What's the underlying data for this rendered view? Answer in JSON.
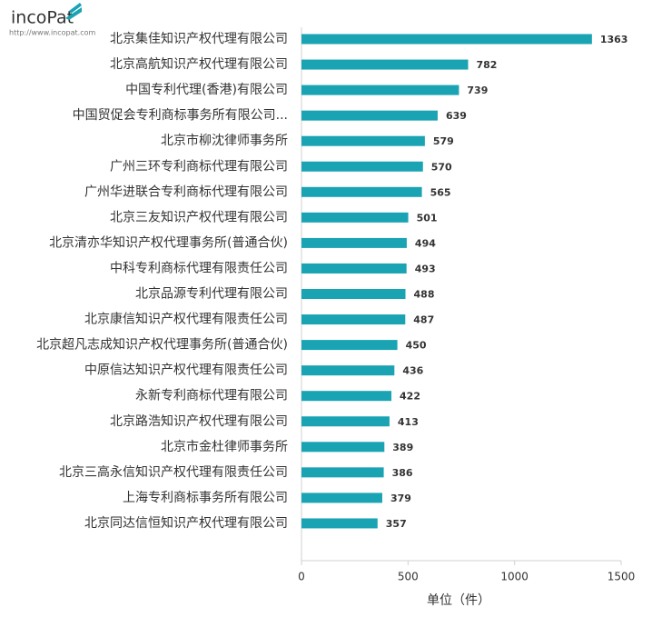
{
  "logo": {
    "text": "incoPat",
    "url": "http://www.incopat.com"
  },
  "chart_data": {
    "type": "hbar",
    "categories": [
      "北京集佳知识产权代理有限公司",
      "北京高航知识产权代理有限公司",
      "中国专利代理(香港)有限公司",
      "中国贸促会专利商标事务所有限公司...",
      "北京市柳沈律师事务所",
      "广州三环专利商标代理有限公司",
      "广州华进联合专利商标代理有限公司",
      "北京三友知识产权代理有限公司",
      "北京清亦华知识产权代理事务所(普通合伙)",
      "中科专利商标代理有限责任公司",
      "北京品源专利代理有限公司",
      "北京康信知识产权代理有限责任公司",
      "北京超凡志成知识产权代理事务所(普通合伙)",
      "中原信达知识产权代理有限责任公司",
      "永新专利商标代理有限公司",
      "北京路浩知识产权代理有限公司",
      "北京市金杜律师事务所",
      "北京三高永信知识产权代理有限责任公司",
      "上海专利商标事务所有限公司",
      "北京同达信恒知识产权代理有限公司"
    ],
    "values": [
      1363,
      782,
      739,
      639,
      579,
      570,
      565,
      501,
      494,
      493,
      488,
      487,
      450,
      436,
      422,
      413,
      389,
      386,
      379,
      357
    ],
    "color": "#1aa3b3",
    "xlim": [
      0,
      1500
    ],
    "xticks": [
      0,
      500,
      1000,
      1500
    ],
    "x_label": "单位（件）"
  }
}
